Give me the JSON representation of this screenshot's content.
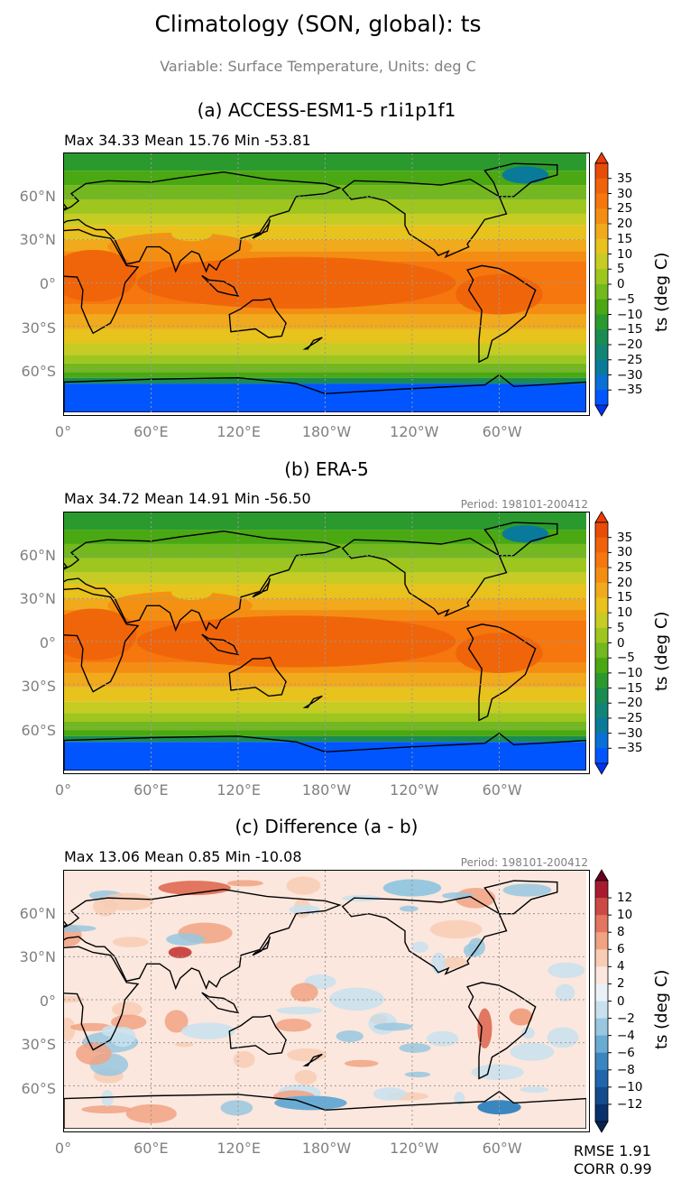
{
  "figure": {
    "title": "Climatology (SON, global): ts",
    "subtitle": "Variable: Surface Temperature, Units: deg C"
  },
  "axes": {
    "lat_labels": [
      "60°N",
      "30°N",
      "0°",
      "30°S",
      "60°S"
    ],
    "lon_labels": [
      "0°",
      "60°E",
      "120°E",
      "180°W",
      "120°W",
      "60°W"
    ]
  },
  "colorbar_abs": {
    "label": "ts (deg C)",
    "levels": [
      -40,
      -35,
      -30,
      -25,
      -20,
      -15,
      -10,
      -5,
      0,
      5,
      10,
      15,
      20,
      25,
      30,
      35,
      40
    ],
    "colors": [
      "#0055ff",
      "#0b6fd8",
      "#0a7a9a",
      "#128476",
      "#1a8c52",
      "#2b9a2e",
      "#4aa812",
      "#72b81e",
      "#9ec61e",
      "#c6cc23",
      "#e8c21d",
      "#f1aa1c",
      "#f48e12",
      "#f5770d",
      "#f0630a",
      "#e84d08"
    ],
    "under_color": "#0033ee",
    "over_color": "#ee3a06",
    "tick_labels": [
      "35",
      "30",
      "25",
      "20",
      "15",
      "10",
      "5",
      "0",
      "−5",
      "−10",
      "−15",
      "−20",
      "−25",
      "−30",
      "−35"
    ]
  },
  "colorbar_diff": {
    "label": "ts (deg C)",
    "levels": [
      -14,
      -12,
      -10,
      -8,
      -6,
      -4,
      -2,
      0,
      2,
      4,
      6,
      8,
      10,
      12,
      14
    ],
    "colors": [
      "#08306b",
      "#134b8c",
      "#2166ac",
      "#3a87c0",
      "#6aabd4",
      "#98c7e0",
      "#c8e1ee",
      "#eaf2f8",
      "#fbe7dd",
      "#f8cdb4",
      "#f1a283",
      "#e27660",
      "#cc4a45",
      "#a81b2e"
    ],
    "under_color": "#06244f",
    "over_color": "#67001f",
    "tick_labels": [
      "12",
      "10",
      "8",
      "6",
      "4",
      "2",
      "0",
      "−2",
      "−4",
      "−6",
      "−8",
      "−10",
      "−12"
    ]
  },
  "panels": [
    {
      "title": "(a) ACCESS-ESM1-5 r1i1p1f1",
      "stats": "Max 34.33 Mean 15.76 Min -53.81",
      "period": ""
    },
    {
      "title": "(b) ERA-5",
      "stats": "Max 34.72 Mean 14.91 Min -56.50",
      "period": "Period: 198101-200412"
    },
    {
      "title": "(c) Difference (a - b)",
      "stats": "Max 13.06 Mean 0.85 Min -10.08",
      "period": "Period: 198101-200412"
    }
  ],
  "metrics": {
    "rmse": "RMSE 1.91",
    "corr": "CORR 0.99"
  },
  "chart_data": [
    {
      "type": "heatmap",
      "title": "(a) ACCESS-ESM1-5 r1i1p1f1",
      "variable": "ts",
      "units": "deg C",
      "x": [
        "0°",
        "60°E",
        "120°E",
        "180°W",
        "120°W",
        "60°W"
      ],
      "y": [
        "60°N",
        "30°N",
        "0°",
        "30°S",
        "60°S"
      ],
      "stats": {
        "max": 34.33,
        "mean": 15.76,
        "min": -53.81
      },
      "colorbar": {
        "label": "ts (deg C)",
        "range": [
          -40,
          40
        ],
        "step": 5
      }
    },
    {
      "type": "heatmap",
      "title": "(b) ERA-5",
      "variable": "ts",
      "units": "deg C",
      "x": [
        "0°",
        "60°E",
        "120°E",
        "180°W",
        "120°W",
        "60°W"
      ],
      "y": [
        "60°N",
        "30°N",
        "0°",
        "30°S",
        "60°S"
      ],
      "stats": {
        "max": 34.72,
        "mean": 14.91,
        "min": -56.5
      },
      "period": "198101-200412",
      "colorbar": {
        "label": "ts (deg C)",
        "range": [
          -40,
          40
        ],
        "step": 5
      }
    },
    {
      "type": "heatmap",
      "title": "(c) Difference (a - b)",
      "variable": "ts",
      "units": "deg C",
      "x": [
        "0°",
        "60°E",
        "120°E",
        "180°W",
        "120°W",
        "60°W"
      ],
      "y": [
        "60°N",
        "30°N",
        "0°",
        "30°S",
        "60°S"
      ],
      "stats": {
        "max": 13.06,
        "mean": 0.85,
        "min": -10.08
      },
      "period": "198101-200412",
      "colorbar": {
        "label": "ts (deg C)",
        "range": [
          -14,
          14
        ],
        "step": 2
      },
      "metrics": {
        "rmse": 1.91,
        "corr": 0.99
      }
    }
  ]
}
